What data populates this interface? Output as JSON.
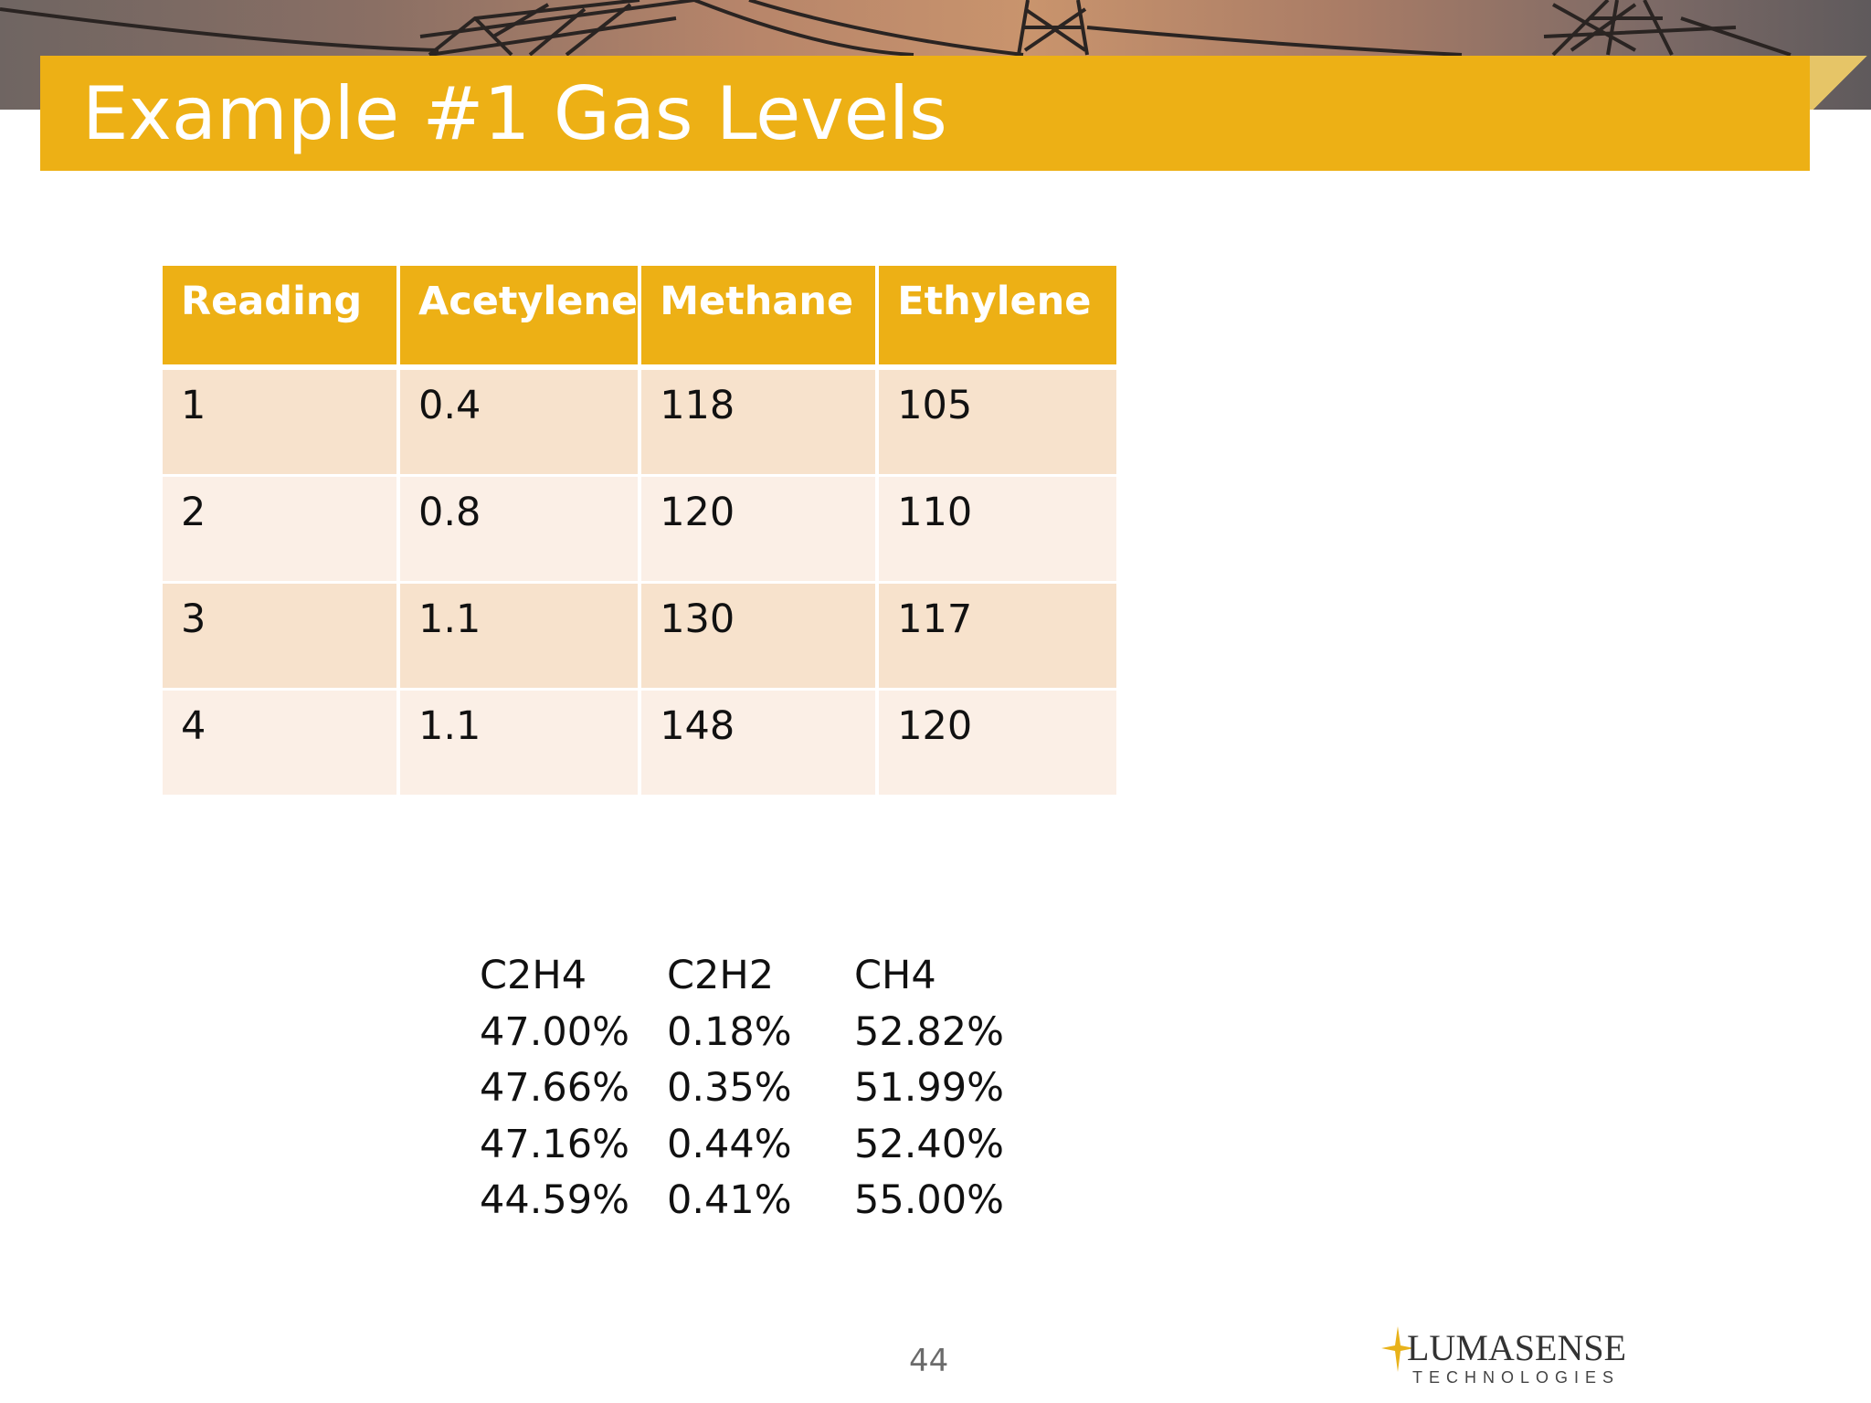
{
  "slide": {
    "title": "Example #1 Gas Levels",
    "page_number": "44"
  },
  "colors": {
    "accent": "#edb015",
    "row_odd": "#f7e2cc",
    "row_even": "#fbefe6"
  },
  "table": {
    "headers": [
      "Reading",
      "Acetylene",
      "Methane",
      "Ethylene"
    ],
    "rows": [
      [
        "1",
        "0.4",
        "118",
        "105"
      ],
      [
        "2",
        "0.8",
        "120",
        "110"
      ],
      [
        "3",
        "1.1",
        "130",
        "117"
      ],
      [
        "4",
        "1.1",
        "148",
        "120"
      ]
    ]
  },
  "percentages": {
    "headers": [
      "C2H4",
      "C2H2",
      "CH4"
    ],
    "rows": [
      [
        "47.00%",
        "0.18%",
        "52.82%"
      ],
      [
        "47.66%",
        "0.35%",
        "51.99%"
      ],
      [
        "47.16%",
        "0.44%",
        "52.40%"
      ],
      [
        "44.59%",
        "0.41%",
        "55.00%"
      ]
    ]
  },
  "logo": {
    "name": "LUMASENSE",
    "tagline": "TECHNOLOGIES"
  },
  "icons": [
    "transmission-tower-icon",
    "logo-star-icon"
  ]
}
